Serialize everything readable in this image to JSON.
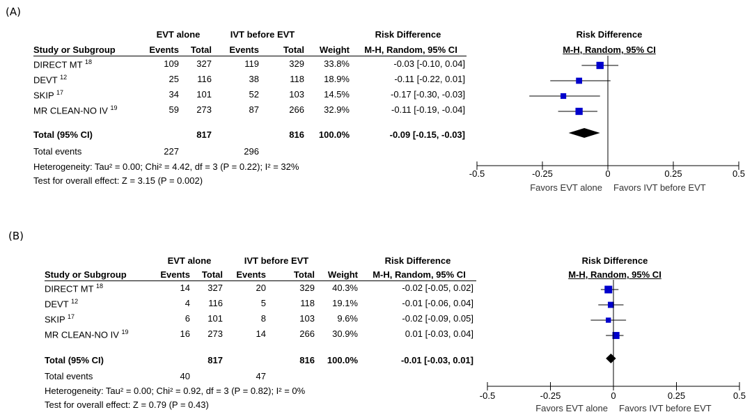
{
  "chart_data": [
    {
      "type": "forest",
      "panel_label": "(A)",
      "header": {
        "group1": "EVT alone",
        "group2": "IVT before EVT",
        "effect_title": "Risk Difference",
        "study_col": "Study or Subgroup",
        "events_col": "Events",
        "total_col": "Total",
        "weight_col": "Weight",
        "method_col": "M-H, Random, 95% CI",
        "plot_title": "Risk Difference",
        "plot_method": "M-H, Random, 95% CI"
      },
      "studies": [
        {
          "name": "DIRECT MT",
          "ref": "18",
          "e1": "109",
          "t1": "327",
          "e2": "119",
          "t2": "329",
          "weight": "33.8%",
          "ci_text": "-0.03 [-0.10, 0.04]",
          "est": -0.03,
          "lo": -0.1,
          "hi": 0.04,
          "w": 33.8
        },
        {
          "name": "DEVT",
          "ref": "12",
          "e1": "25",
          "t1": "116",
          "e2": "38",
          "t2": "118",
          "weight": "18.9%",
          "ci_text": "-0.11 [-0.22, 0.01]",
          "est": -0.11,
          "lo": -0.22,
          "hi": 0.01,
          "w": 18.9
        },
        {
          "name": "SKIP",
          "ref": "17",
          "e1": "34",
          "t1": "101",
          "e2": "52",
          "t2": "103",
          "weight": "14.5%",
          "ci_text": "-0.17 [-0.30, -0.03]",
          "est": -0.17,
          "lo": -0.3,
          "hi": -0.03,
          "w": 14.5
        },
        {
          "name": "MR CLEAN-NO IV",
          "ref": "19",
          "e1": "59",
          "t1": "273",
          "e2": "87",
          "t2": "266",
          "weight": "32.9%",
          "ci_text": "-0.11 [-0.19, -0.04]",
          "est": -0.11,
          "lo": -0.19,
          "hi": -0.04,
          "w": 32.9
        }
      ],
      "total": {
        "label": "Total (95% CI)",
        "t1": "817",
        "t2": "816",
        "weight": "100.0%",
        "ci_text": "-0.09 [-0.15, -0.03]",
        "est": -0.09,
        "lo": -0.15,
        "hi": -0.03
      },
      "total_events": {
        "label": "Total events",
        "e1": "227",
        "e2": "296"
      },
      "heterogeneity": "Heterogeneity: Tau² = 0.00; Chi² = 4.42, df = 3 (P = 0.22); I² = 32%",
      "overall_test": "Test for overall effect: Z = 3.15 (P = 0.002)",
      "xlim": [
        -0.5,
        0.5
      ],
      "xticks": [
        "-0.5",
        "-0.25",
        "0",
        "0.25",
        "0.5"
      ],
      "favors_left": "Favors EVT alone",
      "favors_right": "Favors IVT before EVT",
      "marker_color": "#0000cc"
    },
    {
      "type": "forest",
      "panel_label": "(B)",
      "header": {
        "group1": "EVT alone",
        "group2": "IVT before EVT",
        "effect_title": "Risk Difference",
        "study_col": "Study or Subgroup",
        "events_col": "Events",
        "total_col": "Total",
        "weight_col": "Weight",
        "method_col": "M-H, Random, 95% CI",
        "plot_title": "Risk Difference",
        "plot_method": "M-H, Random, 95% CI"
      },
      "studies": [
        {
          "name": "DIRECT MT",
          "ref": "18",
          "e1": "14",
          "t1": "327",
          "e2": "20",
          "t2": "329",
          "weight": "40.3%",
          "ci_text": "-0.02 [-0.05, 0.02]",
          "est": -0.02,
          "lo": -0.05,
          "hi": 0.02,
          "w": 40.3
        },
        {
          "name": "DEVT",
          "ref": "12",
          "e1": "4",
          "t1": "116",
          "e2": "5",
          "t2": "118",
          "weight": "19.1%",
          "ci_text": "-0.01 [-0.06, 0.04]",
          "est": -0.01,
          "lo": -0.06,
          "hi": 0.04,
          "w": 19.1
        },
        {
          "name": "SKIP",
          "ref": "17",
          "e1": "6",
          "t1": "101",
          "e2": "8",
          "t2": "103",
          "weight": "9.6%",
          "ci_text": "-0.02 [-0.09, 0.05]",
          "est": -0.02,
          "lo": -0.09,
          "hi": 0.05,
          "w": 9.6
        },
        {
          "name": "MR CLEAN-NO IV",
          "ref": "19",
          "e1": "16",
          "t1": "273",
          "e2": "14",
          "t2": "266",
          "weight": "30.9%",
          "ci_text": "0.01 [-0.03, 0.04]",
          "est": 0.01,
          "lo": -0.03,
          "hi": 0.04,
          "w": 30.9
        }
      ],
      "total": {
        "label": "Total (95% CI)",
        "t1": "817",
        "t2": "816",
        "weight": "100.0%",
        "ci_text": "-0.01 [-0.03, 0.01]",
        "est": -0.01,
        "lo": -0.03,
        "hi": 0.01
      },
      "total_events": {
        "label": "Total events",
        "e1": "40",
        "e2": "47"
      },
      "heterogeneity": "Heterogeneity: Tau² = 0.00; Chi² = 0.92, df = 3 (P = 0.82); I² = 0%",
      "overall_test": "Test for overall effect: Z = 0.79 (P = 0.43)",
      "xlim": [
        -0.5,
        0.5
      ],
      "xticks": [
        "-0.5",
        "-0.25",
        "0",
        "0.25",
        "0.5"
      ],
      "favors_left": "Favors EVT alone",
      "favors_right": "Favors IVT before EVT",
      "marker_color": "#0000cc"
    }
  ]
}
